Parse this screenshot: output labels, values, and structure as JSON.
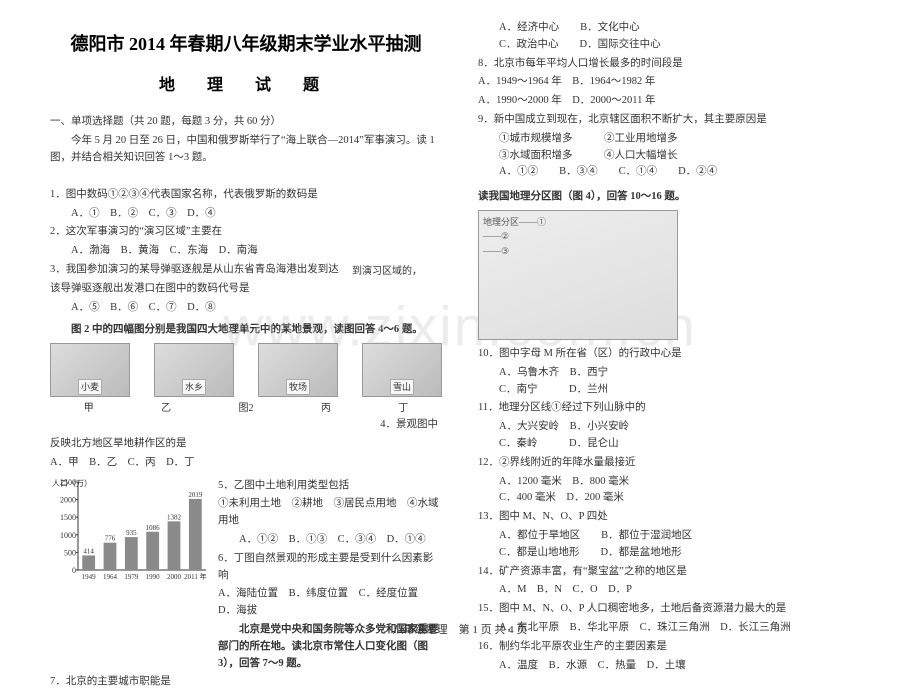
{
  "watermark": "www.zixin.com.cn",
  "title_main": "德阳市 2014 年春期八年级期末学业水平抽测",
  "title_sub": "地 理 试 题",
  "section1": "一、单项选择题（共 20 题，每题 3 分，共 60 分）",
  "intro1": "今年 5 月 20 日至 26 日，中国和俄罗斯举行了“海上联合—2014”军事演习。读 1 图，并结合相关知识回答 1～3 题。",
  "q1": "1．图中数码①②③④代表国家名称，代表俄罗斯的数码是",
  "q1_opts": "A．①　B．②　C．③　D．④",
  "q2": "2．这次军事演习的“演习区域”主要在",
  "q2_opts": "A．渤海　B．黄海　C．东海　D．南海",
  "q3": "3．我国参加演习的某导弹驱逐舰是从山东省青岛海港出发到达",
  "q3_b": "到演习区域的，",
  "q3_c": "该导弹驱逐舰出发港口在图中的数码代号是",
  "q3_opts": "A．⑤　B．⑥　C．⑦　D．⑧",
  "fig2_lead": "图 2 中的四幅图分别是我国四大地理单元中的某地景观，读图回答 4～6 题。",
  "thumbs": [
    "小麦",
    "水乡",
    "牧场",
    "雪山"
  ],
  "thumb_labels": [
    "甲",
    "乙",
    "丙",
    "丁"
  ],
  "fig2_caption_center": "图2",
  "q4_right": "4．景观图中",
  "q4_cont": "反映北方地区旱地耕作区的是",
  "q4_opts": "A．甲　B．乙　C．丙　D．丁",
  "q5": "5．乙图中土地利用类型包括",
  "q5_line": "①未利用土地　②耕地　③居民点用地　④水域用地",
  "q5_opts": "A．①②　B．①③　C．③④　D．①④",
  "q6": "6．丁图自然景观的形成主要是受到什么因素影响",
  "q6_opts": "A．海陆位置　B．纬度位置　C．经度位置　D．海拔",
  "beijing_lead": "北京是党中央和国务院等众多党和国家重要部门的所在地。读北京市常住人口变化图（图 3），回答 7～9 题。",
  "q7": "7．北京的主要城市职能是",
  "chart": {
    "type": "bar",
    "ylabel": "人口（万）",
    "ylim": [
      0,
      2500
    ],
    "ytick_step": 500,
    "categories": [
      "1949",
      "1964",
      "1979",
      "1990",
      "2000",
      "2011 年"
    ],
    "values": [
      414,
      776,
      935,
      1086,
      1382,
      2019
    ],
    "bar_color": "#8a8a8a",
    "label_fontsize": 8,
    "background_color": "#ffffff",
    "axis_color": "#333333"
  },
  "q7_opts": {
    "a": "A．经济中心",
    "b": "B．文化中心",
    "c": "C．政治中心",
    "d": "D．国际交往中心"
  },
  "q8": "8．北京市每年平均人口增长最多的时间段是",
  "q8_opts": "A．1949～1964 年　B．1964～1982 年",
  "q8_opts2": "A．1990～2000 年　D．2000～2011 年",
  "q9": "9．新中国成立到现在，北京辖区面积不断扩大，其主要原因是",
  "q9_line": "①城市规模增多　　　②工业用地增多",
  "q9_line2": "③水域面积增多　　　④人口大幅增长",
  "q9_opts": "A．①②　　B．③④　　C．①④　　D．②④",
  "fig4_lead": "读我国地理分区图（图 4），回答 10～16 题。",
  "map_label": "地理分区——①\n——②\n——③",
  "q10": "10．图中字母 M 所在省（区）的行政中心是",
  "q10_opts": "A．乌鲁木齐　B．西宁",
  "q10_opts2": "C．南宁　　　D．兰州",
  "q11": "11．地理分区线①经过下列山脉中的",
  "q11_opts": "A．大兴安岭　B．小兴安岭",
  "q11_opts2": "C．秦岭　　　D．昆仑山",
  "q12": "12．②界线附近的年降水量最接近",
  "q12_opts": "A．1200 毫米　B．800 毫米",
  "q12_opts2": "C．400 毫米　D．200 毫米",
  "q13": "13．图中 M、N、O、P 四处",
  "q13_opts": "A．都位于旱地区　　B．都位于湿润地区",
  "q13_opts2": "C．都是山地地形　　D．都是盆地地形",
  "q14": "14．矿产资源丰富，有“聚宝盆”之称的地区是",
  "q14_opts": "A．M　B．N　C．O　D．P",
  "q15": "15．图中 M、N、O、P 人口稠密地多，土地后备资源潜力最大的是",
  "q15_opts": "A．东北平原　B．华北平原　C．珠江三角洲　D．长江三角洲",
  "q16": "16．制约华北平原农业生产的主要因素是",
  "q16_opts": "A．温度　B．水源　C．热量　D．土壤",
  "footer": "八年级地理　第 1 页 共 4 页"
}
